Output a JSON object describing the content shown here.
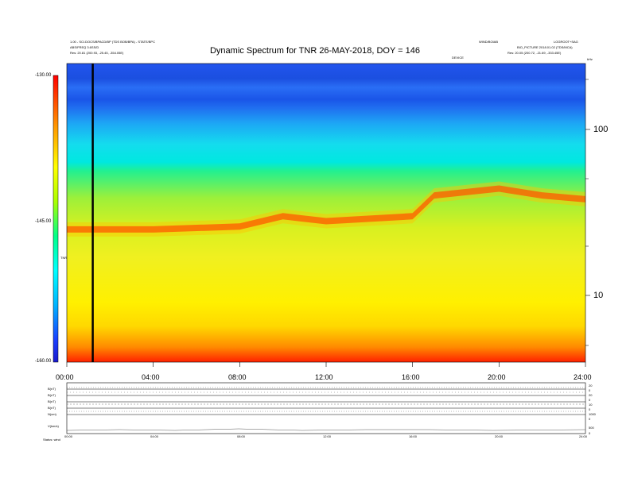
{
  "header": {
    "title": "Dynamic Spectrum for TNR 26-MAY-2018, DOY = 146",
    "left_line1": "1.00 - SCI.DOCS/BPACD/BP (TDS BOB/BPA) - STATE/BPC",
    "left_line2": "ABS/FREQ 3.6SS/D",
    "left_line3": "Res: 20.81 (200.93, -25.45, -354.05E)",
    "right_line1": "WIND/BOIAB",
    "right_line2": "LOGROOT+SAG",
    "right_line3": "BIO_PICTURE 2018.01.02 (TDS/MCA)",
    "right_line4": "Res: 20.05 (200.72, -21.69, -333.45E)",
    "center_small": "DEVICE",
    "corner_label": "kHz"
  },
  "chart_data": {
    "type": "heatmap",
    "title": "Dynamic Spectrum for TNR 26-MAY-2018, DOY = 146",
    "x_ticks": [
      "00:00",
      "04:00",
      "08:00",
      "12:00",
      "16:00",
      "20:00",
      "24:00"
    ],
    "x_range_hours": [
      0,
      24
    ],
    "y_right_ticks": [
      100,
      10
    ],
    "y_right_scale": "log",
    "y_right_unit": "kHz",
    "colorbar": {
      "ticks": [
        "-130.00",
        "-145.00",
        "-160.00"
      ],
      "label": "TNR",
      "range": [
        -160,
        -130
      ],
      "colors": [
        "#1a1acc",
        "#00b4ff",
        "#00ffff",
        "#00ff66",
        "#ffff00",
        "#ff9900",
        "#ff0000"
      ]
    },
    "event_marker_hour": 1.2,
    "emission_band_peak_kHz": [
      {
        "hour": 0,
        "kHz": 25
      },
      {
        "hour": 4,
        "kHz": 25
      },
      {
        "hour": 8,
        "kHz": 26
      },
      {
        "hour": 10,
        "kHz": 30
      },
      {
        "hour": 12,
        "kHz": 28
      },
      {
        "hour": 16,
        "kHz": 30
      },
      {
        "hour": 17,
        "kHz": 40
      },
      {
        "hour": 20,
        "kHz": 44
      },
      {
        "hour": 22,
        "kHz": 40
      },
      {
        "hour": 24,
        "kHz": 38
      }
    ]
  },
  "bottom_panels": {
    "labels": [
      "B(nT)",
      "B(nT)",
      "B(nT)",
      "B(nT)",
      "N(cm)",
      "V(km/s)"
    ],
    "right_ticks": [
      "20",
      "0",
      "20",
      "0",
      "10",
      "0",
      "1000",
      "0",
      "500",
      "0"
    ],
    "x_ticks": [
      "00:00",
      "04:00",
      "08:00",
      "12:00",
      "16:00",
      "20:00",
      "24:00"
    ],
    "footer_left": "Status: wind"
  }
}
